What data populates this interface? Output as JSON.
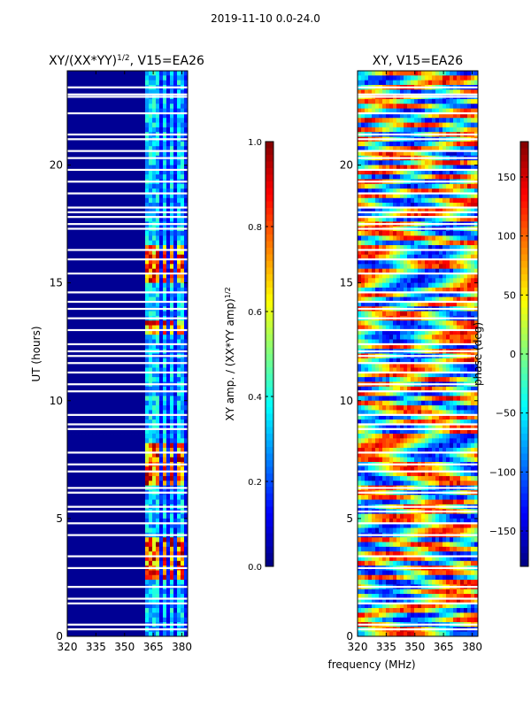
{
  "header": {
    "suptitle": "2019-11-10 0.0-24.0"
  },
  "colors": {
    "background": "#ffffff",
    "gap": "#ffffff",
    "axis": "#000000",
    "jet_dark_blue": "#00007f",
    "jet_red": "#7f0000"
  },
  "chart_data": [
    {
      "type": "heatmap",
      "id": "amp",
      "title": "XY/(XX*YY)",
      "title_superscript": "1/2",
      "title_suffix": ", V15=EA26",
      "xlabel": "",
      "ylabel": "UT (hours)",
      "xlim": [
        320,
        383
      ],
      "ylim": [
        0,
        24
      ],
      "xticks": [
        320,
        335,
        350,
        365,
        380
      ],
      "xtick_labels": [
        "320",
        "335",
        "350",
        "365",
        "380"
      ],
      "yticks": [
        0,
        5,
        10,
        15,
        20
      ],
      "ytick_labels": [
        "0",
        "5",
        "10",
        "15",
        "20"
      ],
      "colormap": "jet",
      "active_band_mhz": [
        360,
        382
      ],
      "active_channels_mhz": [
        361.5,
        364.5,
        367.5,
        371,
        374.5,
        378,
        381
      ],
      "bright_intervals_hours": [
        [
          2.5,
          4.2
        ],
        [
          6.5,
          8.2
        ],
        [
          12.8,
          13.3
        ],
        [
          15.0,
          16.5
        ]
      ],
      "flagged_hours": [
        0.3,
        0.5,
        1.4,
        1.6,
        2.1,
        2.9,
        3.4,
        4.3,
        4.8,
        5.3,
        5.5,
        6.1,
        6.3,
        7.0,
        7.3,
        7.8,
        8.8,
        9.0,
        9.4,
        10.4,
        10.7,
        11.2,
        11.6,
        11.9,
        12.1,
        12.4,
        13.0,
        13.5,
        13.9,
        14.2,
        14.6,
        15.4,
        16.0,
        16.4,
        17.3,
        17.5,
        17.8,
        18.0,
        18.2,
        18.8,
        19.3,
        19.8,
        20.3,
        20.6,
        21.1,
        21.3,
        22.2,
        22.9,
        23.0,
        23.3
      ]
    },
    {
      "type": "heatmap",
      "id": "phase",
      "title": "XY, V15=EA26",
      "xlabel": "frequency (MHz)",
      "ylabel": "",
      "xlim": [
        320,
        383
      ],
      "ylim": [
        0,
        24
      ],
      "xticks": [
        320,
        335,
        350,
        365,
        380
      ],
      "xtick_labels": [
        "320",
        "335",
        "350",
        "365",
        "380"
      ],
      "yticks": [
        0,
        5,
        10,
        15,
        20
      ],
      "ytick_labels": [
        "0",
        "5",
        "10",
        "15",
        "20"
      ],
      "colormap": "jet",
      "value_range": [
        -180,
        180
      ],
      "flagged_hours": [
        0.3,
        0.5,
        1.4,
        1.6,
        2.1,
        2.9,
        3.4,
        4.3,
        4.8,
        5.3,
        5.5,
        6.1,
        6.3,
        7.0,
        7.3,
        7.8,
        8.8,
        9.0,
        9.4,
        10.4,
        10.7,
        11.2,
        11.6,
        11.9,
        12.1,
        12.4,
        13.0,
        13.5,
        13.9,
        14.2,
        14.6,
        15.4,
        16.0,
        16.4,
        17.3,
        17.5,
        17.8,
        18.0,
        18.2,
        18.8,
        19.3,
        19.8,
        20.3,
        20.6,
        21.1,
        21.3,
        22.2,
        22.9,
        23.0,
        23.3
      ]
    }
  ],
  "colorbars": [
    {
      "id": "amp-colorbar",
      "label": "XY amp. / (XX*YY amp)",
      "label_superscript": "1/2",
      "range": [
        0.0,
        1.0
      ],
      "ticks": [
        0.0,
        0.2,
        0.4,
        0.6,
        0.8,
        1.0
      ],
      "tick_labels": [
        "0.0",
        "0.2",
        "0.4",
        "0.6",
        "0.8",
        "1.0"
      ]
    },
    {
      "id": "phase-colorbar",
      "label": "phase (deg)",
      "range": [
        -180,
        180
      ],
      "ticks": [
        -150,
        -100,
        -50,
        0,
        50,
        100,
        150
      ],
      "tick_labels": [
        "−150",
        "−100",
        "−50",
        "0",
        "50",
        "100",
        "150"
      ]
    }
  ]
}
